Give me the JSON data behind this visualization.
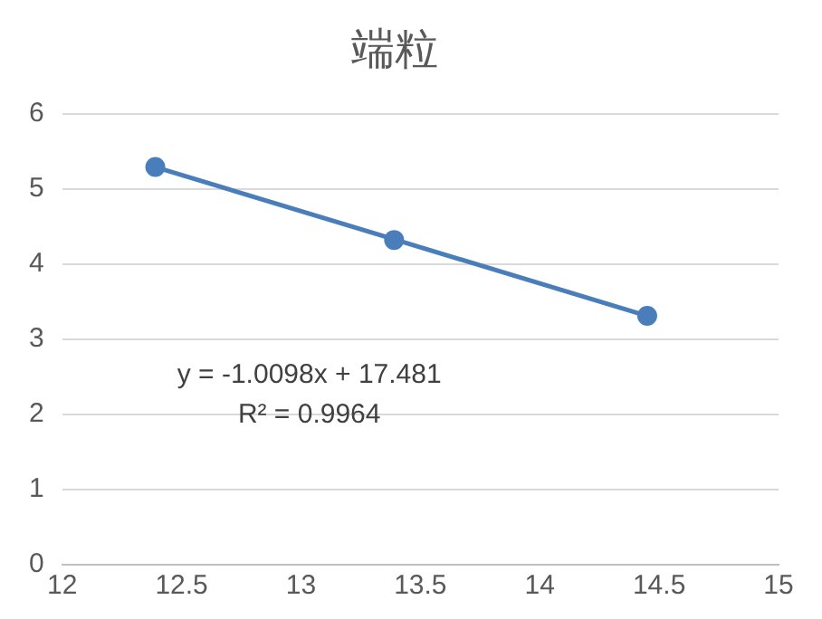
{
  "chart_data": {
    "type": "scatter",
    "title": "端粒",
    "series": [
      {
        "color": "#4a7ebb",
        "marker": "circle",
        "x": [
          12.39,
          13.39,
          14.45
        ],
        "values": [
          5.29,
          4.32,
          3.31
        ]
      },
      {
        "type": "line",
        "color": "#4a7ebb",
        "marker": "none",
        "x": [
          12.39,
          14.45
        ],
        "values": [
          5.29,
          3.31
        ]
      }
    ],
    "xlim": [
      12,
      15
    ],
    "xticks": [
      12,
      12.5,
      13,
      13.5,
      14,
      14.5,
      15
    ],
    "ylim": [
      0,
      6
    ],
    "yticks": [
      0,
      1,
      2,
      3,
      4,
      5,
      6
    ],
    "grid": "y",
    "legend": false,
    "annotations": [
      "y = -1.0098x + 17.481",
      "R² = 0.9964"
    ]
  }
}
